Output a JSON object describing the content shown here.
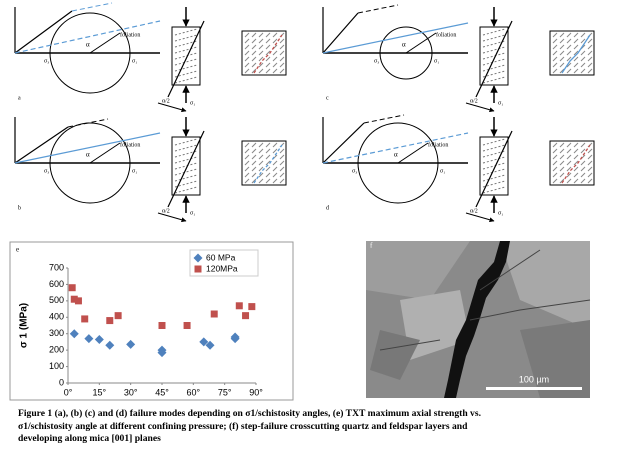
{
  "diagrams": [
    {
      "label": "a",
      "foliation": "foliation",
      "sigma3": "σ₃",
      "sigma1": "σ₁",
      "alpha": "α",
      "half_alpha": "α/2",
      "sigma1_rect": "σ₁"
    },
    {
      "label": "b",
      "foliation": "foliation",
      "sigma3": "σ₃",
      "sigma1": "σ₁",
      "alpha": "α",
      "half_alpha": "α/2",
      "sigma1_rect": "σ₁"
    },
    {
      "label": "c",
      "foliation": "foliation",
      "sigma3": "σ₃",
      "sigma1": "σ₁",
      "alpha": "α",
      "half_alpha": "α/2",
      "sigma1_rect": "σ₁"
    },
    {
      "label": "d",
      "foliation": "foliation",
      "sigma3": "σ₃",
      "sigma1": "σ₁",
      "alpha": "α",
      "half_alpha": "α/2",
      "sigma1_rect": "σ₁"
    }
  ],
  "chart_data": {
    "type": "scatter",
    "panel_label": "e",
    "y_label": "σ 1 (MPa)",
    "series": [
      {
        "name": "60 MPa",
        "color": "#4f81bd",
        "marker": "diamond",
        "x": [
          3,
          10,
          15,
          20,
          30,
          45,
          45,
          65,
          68,
          80,
          80
        ],
        "values": [
          300,
          270,
          265,
          230,
          235,
          200,
          185,
          250,
          230,
          270,
          280
        ]
      },
      {
        "name": "120MPa",
        "color": "#c0504d",
        "marker": "square",
        "x": [
          2,
          3,
          5,
          8,
          20,
          24,
          45,
          57,
          70,
          82,
          85,
          88
        ],
        "values": [
          580,
          510,
          500,
          390,
          380,
          410,
          350,
          350,
          420,
          470,
          410,
          465
        ]
      }
    ],
    "xlim": [
      0,
      90
    ],
    "ylim": [
      0,
      700
    ],
    "xticks": [
      {
        "value": 0,
        "label": "0°"
      },
      {
        "value": 15,
        "label": "15°"
      },
      {
        "value": 30,
        "label": "30°"
      },
      {
        "value": 45,
        "label": "45°"
      },
      {
        "value": 60,
        "label": "60°"
      },
      {
        "value": 75,
        "label": "75°"
      },
      {
        "value": 90,
        "label": "90°"
      }
    ],
    "yticks": [
      0,
      100,
      200,
      300,
      400,
      500,
      600,
      700
    ],
    "grid": false,
    "legend": "top-right"
  },
  "image": {
    "label": "f",
    "scale": "100 µm"
  },
  "caption": [
    "Figure 1 (a), (b) (c) and (d) failure modes depending on σ1/schistosity angles, (e) TXT maximum axial strength vs.",
    "σ1/schistosity angle at different confining pressure; (f) step-failure crosscutting quartz and feldspar layers and",
    "developing along mica [001] planes"
  ]
}
